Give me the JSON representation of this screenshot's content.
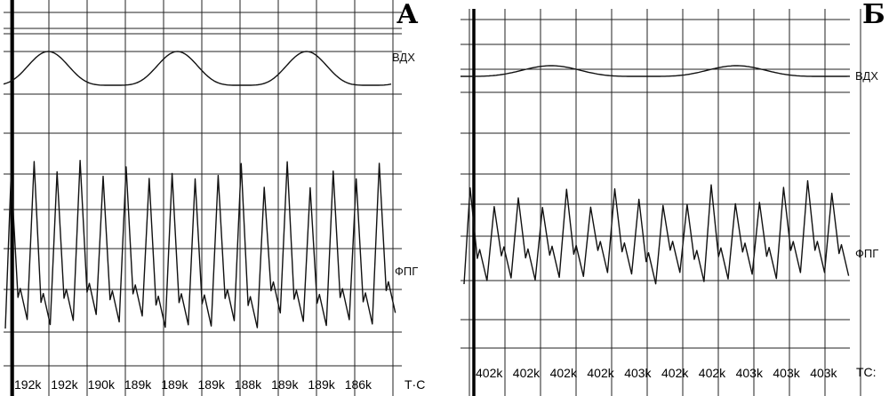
{
  "panels": [
    {
      "id": "A",
      "letter": "А",
      "resp_label": "ВДХ",
      "ppg_label": "ФПГ",
      "axis_label": "Т·С",
      "ticks": [
        "192k",
        "192k",
        "190k",
        "189k",
        "189k",
        "189k",
        "188k",
        "189k",
        "189k",
        "186k"
      ]
    },
    {
      "id": "B",
      "letter": "Б",
      "resp_label": "ВДХ",
      "ppg_label": "ФПГ",
      "axis_label": "ТС:",
      "ticks": [
        "402k",
        "402k",
        "402k",
        "402k",
        "403k",
        "402k",
        "402k",
        "403k",
        "403k",
        "403k"
      ]
    }
  ]
}
